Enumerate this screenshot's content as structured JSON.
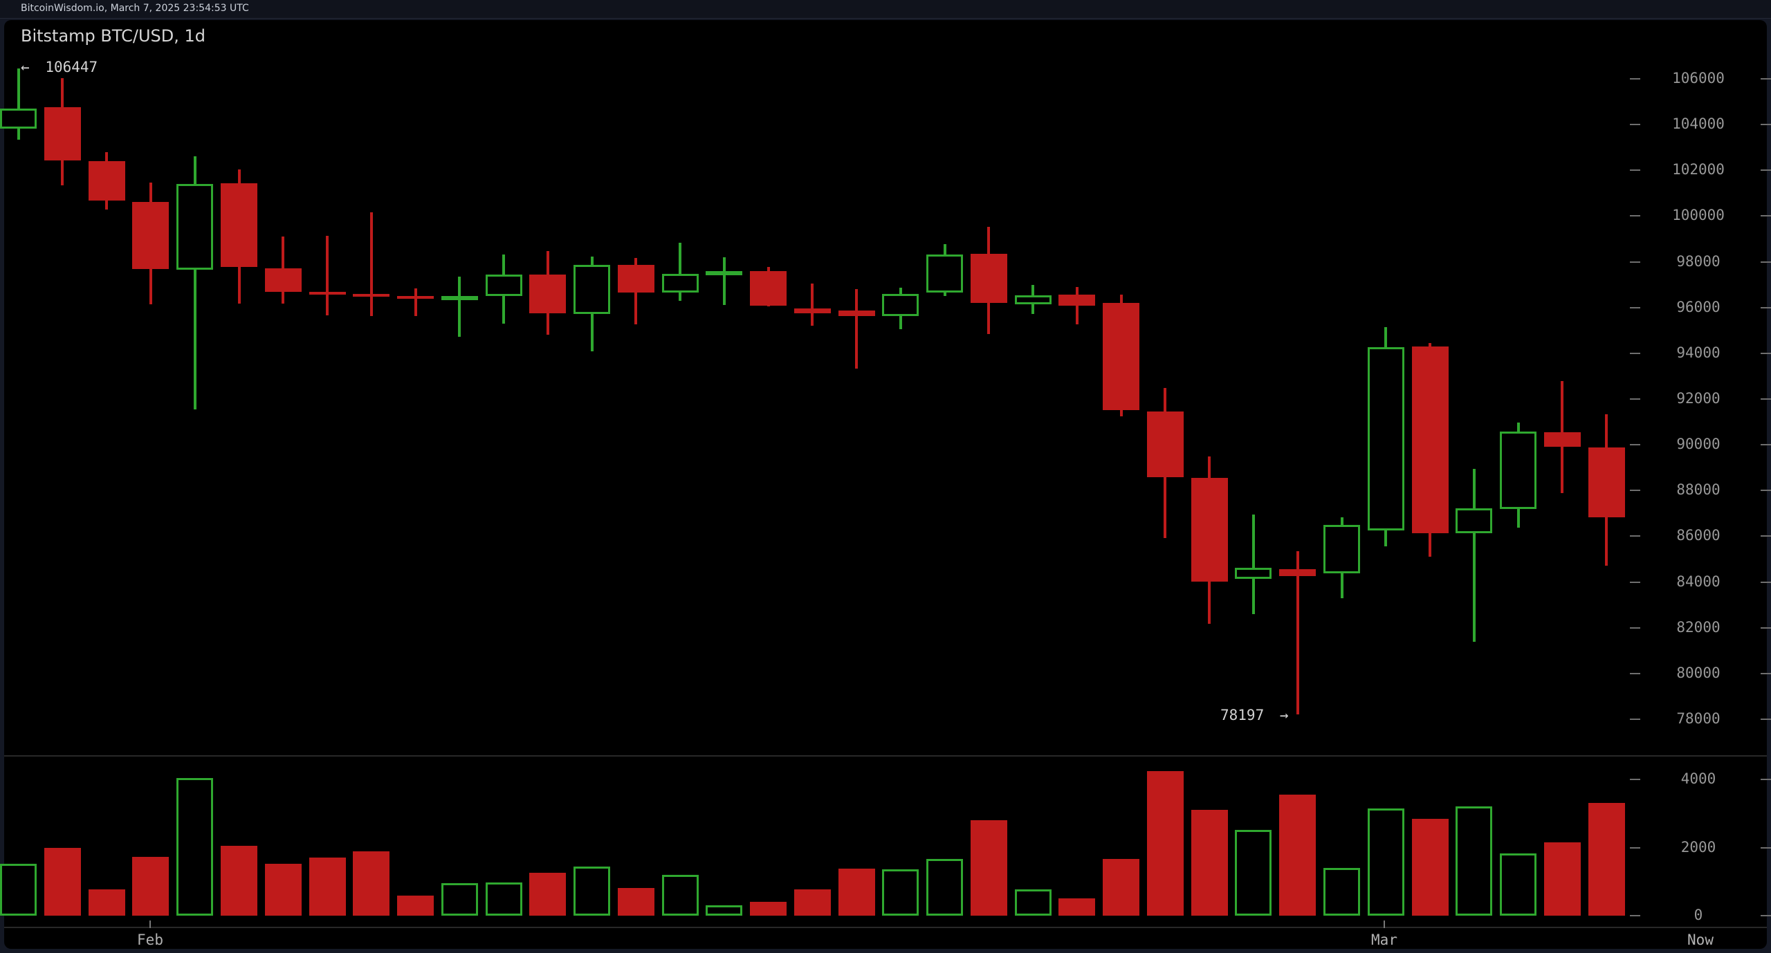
{
  "header": {
    "status_text": "BitcoinWisdom.io, March 7, 2025 23:54:53 UTC"
  },
  "chart": {
    "title": "Bitstamp BTC/USD, 1d",
    "max_label": {
      "arrow": "←",
      "value": "106447"
    },
    "min_label": {
      "value": "78197",
      "arrow": "→"
    }
  },
  "colors": {
    "up": "#2fa82f",
    "down": "#bf1b1b",
    "chart_bg": "#000000",
    "page_bg": "#141824",
    "axis_text": "#989898",
    "time_text": "#b2b2b2",
    "title_text": "#d6d6d6",
    "extreme_text": "#d2d2d2",
    "separator": "#282828"
  },
  "axes": {
    "price_ticks": [
      106000,
      104000,
      102000,
      100000,
      98000,
      96000,
      94000,
      92000,
      90000,
      88000,
      86000,
      84000,
      82000,
      80000,
      78000
    ],
    "volume_ticks": [
      4000,
      2000,
      0
    ],
    "time_labels": [
      "Feb",
      "Mar",
      "Now"
    ]
  },
  "chart_data": {
    "type": "candlestick+volume",
    "title": "Bitstamp BTC/USD, 1d",
    "interval": "1d",
    "price_axis_range": [
      78000,
      106000
    ],
    "volume_axis_range": [
      0,
      4000
    ],
    "high_marker": 106447,
    "low_marker": 78197,
    "legend_position": "none",
    "grid": "side-dashes-only",
    "columns": [
      "date",
      "open",
      "high",
      "low",
      "close",
      "volume"
    ],
    "candles": [
      [
        "Jan 30",
        103830,
        106447,
        103330,
        104710,
        1530
      ],
      [
        "Jan 31",
        104750,
        106040,
        101330,
        102440,
        1980
      ],
      [
        "Feb 1",
        102390,
        102790,
        100280,
        100680,
        780
      ],
      [
        "Feb 2",
        100610,
        101450,
        96140,
        97680,
        1730
      ],
      [
        "Feb 3",
        97650,
        102620,
        91540,
        101410,
        4050
      ],
      [
        "Feb 4",
        101430,
        102040,
        96160,
        97780,
        2060
      ],
      [
        "Feb 5",
        97720,
        99110,
        96160,
        96700,
        1530
      ],
      [
        "Feb 6",
        96690,
        99140,
        95660,
        96590,
        1700
      ],
      [
        "Feb 7",
        96600,
        100170,
        95640,
        96490,
        1890
      ],
      [
        "Feb 8",
        96490,
        96850,
        95640,
        96400,
        590
      ],
      [
        "Feb 9",
        96400,
        97350,
        94730,
        96500,
        960
      ],
      [
        "Feb 10",
        96500,
        98310,
        95290,
        97430,
        980
      ],
      [
        "Feb 11",
        97450,
        98480,
        94810,
        95760,
        1250
      ],
      [
        "Feb 12",
        95720,
        98240,
        94080,
        97880,
        1450
      ],
      [
        "Feb 13",
        97880,
        98160,
        95260,
        96670,
        810
      ],
      [
        "Feb 14",
        96670,
        98840,
        96290,
        97470,
        1200
      ],
      [
        "Feb 15",
        97540,
        98200,
        96110,
        97590,
        300
      ],
      [
        "Feb 16",
        97580,
        97780,
        96060,
        96090,
        410
      ],
      [
        "Feb 17",
        95960,
        97050,
        95210,
        95760,
        780
      ],
      [
        "Feb 18",
        95860,
        96800,
        93340,
        95640,
        1380
      ],
      [
        "Feb 19",
        95640,
        96870,
        95050,
        96600,
        1370
      ],
      [
        "Feb 20",
        96650,
        98780,
        96500,
        98310,
        1660
      ],
      [
        "Feb 21",
        98340,
        99520,
        94830,
        96210,
        2810
      ],
      [
        "Feb 22",
        96140,
        97000,
        95720,
        96550,
        780
      ],
      [
        "Feb 23",
        96570,
        96890,
        95250,
        96090,
        510
      ],
      [
        "Feb 24",
        96210,
        96570,
        91250,
        91510,
        1660
      ],
      [
        "Feb 25",
        91450,
        92490,
        85930,
        88580,
        4250
      ],
      [
        "Feb 26",
        88550,
        89490,
        82180,
        84020,
        3100
      ],
      [
        "Feb 27",
        84150,
        86950,
        82600,
        84630,
        2510
      ],
      [
        "Feb 28",
        84560,
        85350,
        78197,
        84270,
        3550
      ],
      [
        "Mar 1",
        84380,
        86820,
        83290,
        86490,
        1410
      ],
      [
        "Mar 2",
        86240,
        95130,
        85560,
        94280,
        3150
      ],
      [
        "Mar 3",
        94300,
        94450,
        85100,
        86140,
        2840
      ],
      [
        "Mar 4",
        86140,
        88930,
        81380,
        87220,
        3200
      ],
      [
        "Mar 5",
        87190,
        90970,
        86360,
        90580,
        1820
      ],
      [
        "Mar 6",
        90550,
        92790,
        87900,
        89910,
        2150
      ],
      [
        "Mar 7",
        89890,
        91330,
        84700,
        86820,
        3300
      ]
    ]
  }
}
